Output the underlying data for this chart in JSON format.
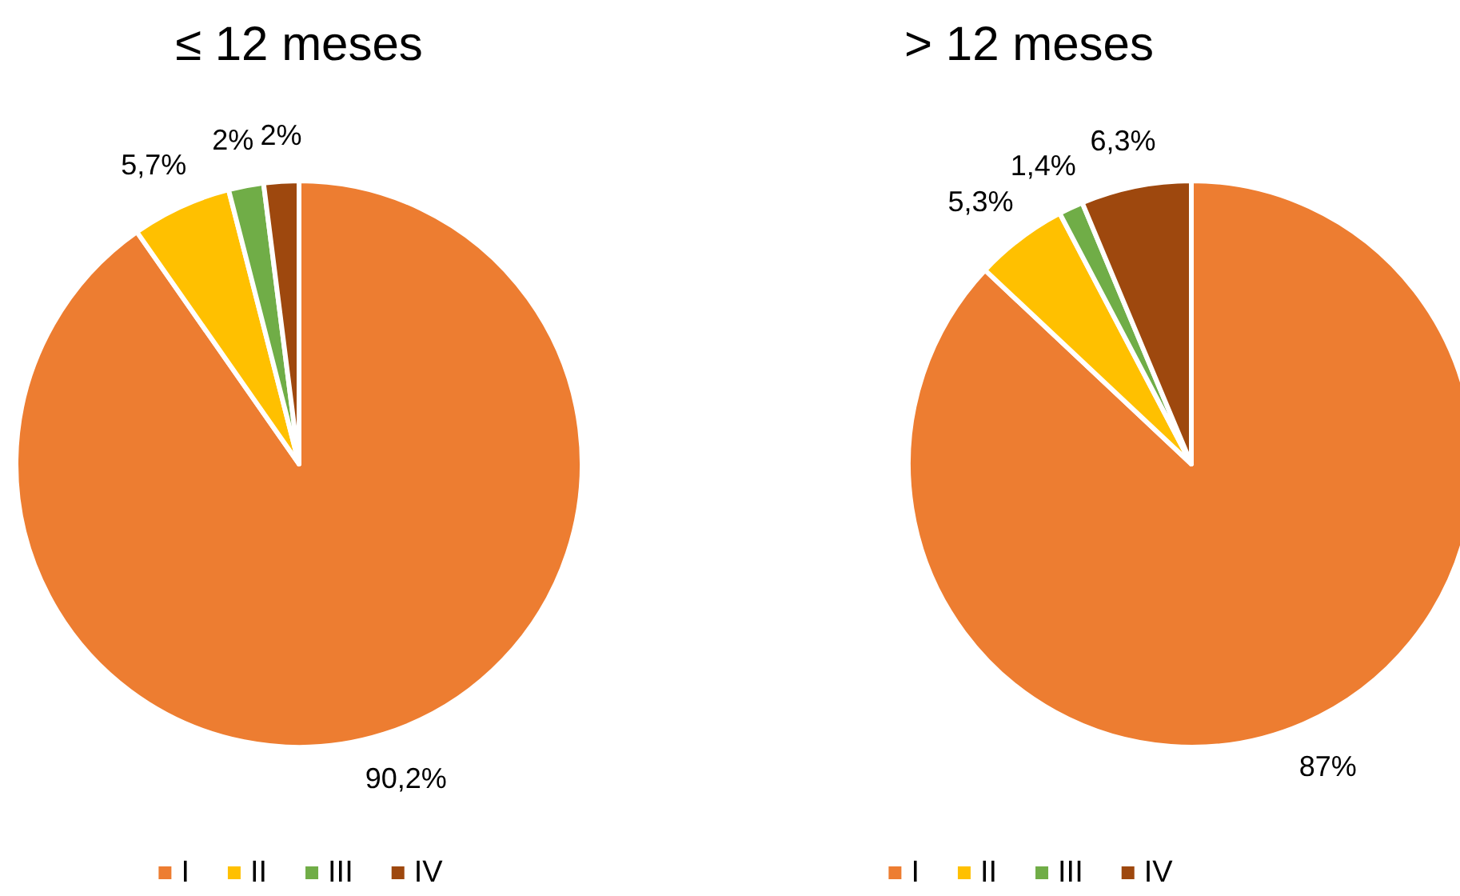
{
  "chart_data": [
    {
      "type": "pie",
      "title": "≤ 12 meses",
      "categories": [
        "I",
        "II",
        "III",
        "IV"
      ],
      "values": [
        90.2,
        5.7,
        2,
        2
      ],
      "colors": [
        "#ed7d31",
        "#ffc000",
        "#70ad47",
        "#9e480e"
      ],
      "value_labels": [
        "90,2%",
        "5,7%",
        "2%",
        "2%"
      ],
      "legend": "bottom"
    },
    {
      "type": "pie",
      "title": "> 12 meses",
      "categories": [
        "I",
        "II",
        "III",
        "IV"
      ],
      "values": [
        87,
        5.3,
        1.4,
        6.3
      ],
      "colors": [
        "#ed7d31",
        "#ffc000",
        "#70ad47",
        "#9e480e"
      ],
      "value_labels": [
        "87%",
        "5,3%",
        "1,4%",
        "6,3%"
      ],
      "legend": "bottom"
    }
  ]
}
